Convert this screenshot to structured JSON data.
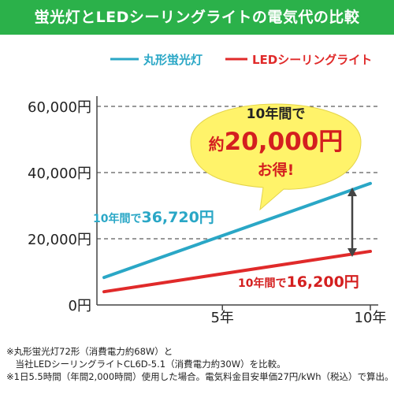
{
  "header": {
    "title": "蛍光灯とLEDシーリングライトの電気代の比較"
  },
  "colors": {
    "header_bg": "#2bb14a",
    "fluorescent": "#2aa7c6",
    "led": "#e02a2a",
    "accent_red": "#d41f1f",
    "bubble": "#fff36a"
  },
  "chart_data": {
    "type": "line",
    "title": "",
    "xlabel": "",
    "ylabel": "",
    "x_ticks": [
      "5年",
      "10年"
    ],
    "y_ticks": [
      "0円",
      "20,000円",
      "40,000円",
      "60,000円"
    ],
    "ylim": [
      0,
      60000
    ],
    "grid": true,
    "legend": "top",
    "series": [
      {
        "name": "丸形蛍光灯",
        "x": [
          1,
          10
        ],
        "values": [
          8300,
          36720
        ],
        "color": "#2aa7c6"
      },
      {
        "name": "LEDシーリングライト",
        "x": [
          1,
          10
        ],
        "values": [
          4000,
          16200
        ],
        "color": "#e02a2a"
      }
    ],
    "annotations": {
      "fluorescent_label": {
        "prefix": "10年間で",
        "value": "36,720円"
      },
      "led_label": {
        "prefix": "10年間で",
        "value": "16,200円"
      },
      "bubble": {
        "line1": "10年間で",
        "line2_prefix": "約",
        "line2_value": "20,000円",
        "line3": "お得!"
      }
    }
  },
  "footnotes": [
    "※丸形蛍光灯72形（消費電力約68W）と",
    "　当社LEDシーリングライトCL6D-5.1（消費電力約30W）を比較。",
    "※1日5.5時間（年間2,000時間）使用した場合。電気料金目安単価27円/kWh（税込）で算出。"
  ]
}
